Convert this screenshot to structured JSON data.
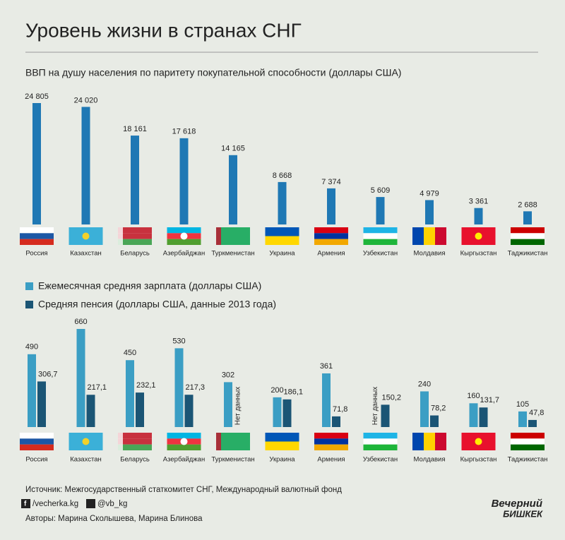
{
  "title": "Уровень жизни в странах СНГ",
  "chart_data": [
    {
      "type": "bar",
      "title": "ВВП на душу населения по паритету покупательной способности (доллары США)",
      "categories": [
        "Россия",
        "Казахстан",
        "Беларусь",
        "Азербайджан",
        "Туркменистан",
        "Украина",
        "Армения",
        "Узбекистан",
        "Молдавия",
        "Кыргызстан",
        "Таджикистан"
      ],
      "values": [
        24805,
        24020,
        18161,
        17618,
        14165,
        8668,
        7374,
        5609,
        4979,
        3361,
        2688
      ],
      "value_labels": [
        "24 805",
        "24 020",
        "18 161",
        "17 618",
        "14 165",
        "8 668",
        "7 374",
        "5 609",
        "4 979",
        "3 361",
        "2 688"
      ],
      "color": "#1f78b4"
    },
    {
      "type": "grouped-bar",
      "categories": [
        "Россия",
        "Казахстан",
        "Беларусь",
        "Азербайджан",
        "Туркменистан",
        "Украина",
        "Армения",
        "Узбекистан",
        "Молдавия",
        "Кыргызстан",
        "Таджикистан"
      ],
      "series": [
        {
          "name": "Ежемесячная средняя зарплата (доллары США)",
          "color": "#3b9ec4",
          "values": [
            490,
            660,
            450,
            530,
            302,
            200,
            361,
            null,
            240,
            160,
            105
          ],
          "value_labels": [
            "490",
            "660",
            "450",
            "530",
            "302",
            "200",
            "361",
            "Нет данных",
            "240",
            "160",
            "105"
          ]
        },
        {
          "name": "Средняя пенсия (доллары США, данные 2013 года)",
          "color": "#1b5575",
          "values": [
            306.7,
            217.1,
            232.1,
            217.3,
            null,
            186.1,
            71.8,
            150.2,
            78.2,
            131.7,
            47.8
          ],
          "value_labels": [
            "306,7",
            "217,1",
            "232,1",
            "217,3",
            "Нет данных",
            "186,1",
            "71,8",
            "150,2",
            "78,2",
            "131,7",
            "47,8"
          ]
        }
      ]
    }
  ],
  "footer": {
    "source": "Источник: Межгосударственный статкомитет СНГ, Международный валютный фонд",
    "facebook": "/vecherka.kg",
    "twitter": "@vb_kg",
    "authors": "Авторы: Марина Сколышева, Марина Блинова",
    "logo_line1": "Вечерний",
    "logo_line2": "БИШКЕК"
  }
}
